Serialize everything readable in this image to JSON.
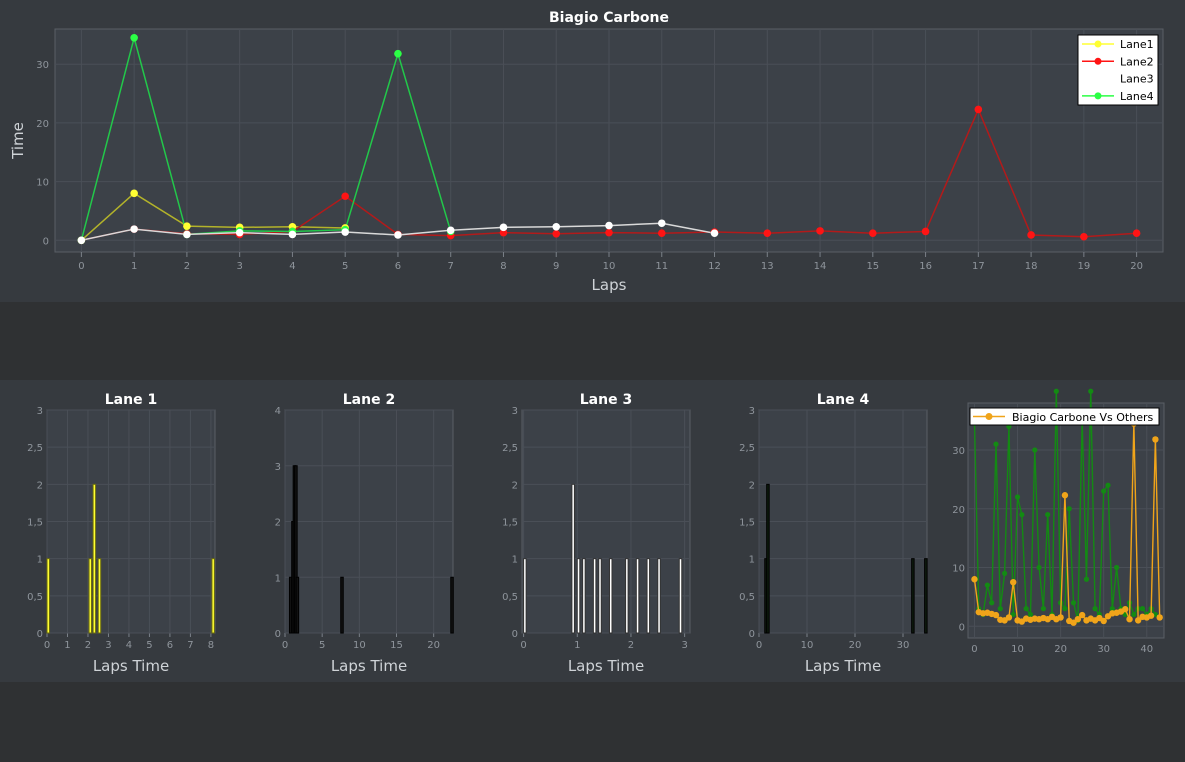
{
  "colors": {
    "background": "#2f3133",
    "panel": "#363a3f",
    "plot": "#3c4148",
    "grid": "#4a4f57",
    "lane1": "#b3b32a",
    "lane1_marker": "#ffff33",
    "lane2": "#b31a1a",
    "lane2_marker": "#ff1414",
    "lane3": "#d9d9d9",
    "lane3_marker": "#ffffff",
    "lane4": "#22c84a",
    "lane4_marker": "#2bff45",
    "histogram_lane2": "#111111",
    "histogram_lane4": "#0d1a0d",
    "others": "#138a13",
    "compare": "#f0a41a"
  },
  "chart_data": [
    {
      "id": "main",
      "type": "line",
      "title": "Biagio Carbone",
      "xlabel": "Laps",
      "ylabel": "Time",
      "xlim": [
        -0.5,
        20.5
      ],
      "ylim": [
        -2,
        36
      ],
      "xticks": [
        0,
        1,
        2,
        3,
        4,
        5,
        6,
        7,
        8,
        9,
        10,
        11,
        12,
        13,
        14,
        15,
        16,
        17,
        18,
        19,
        20
      ],
      "yticks": [
        0,
        10,
        20,
        30
      ],
      "grid": true,
      "legend_position": "top-right",
      "series": [
        {
          "name": "Lane1",
          "x": [
            0,
            1,
            2,
            3,
            4,
            5
          ],
          "y": [
            0,
            8,
            2.4,
            2.2,
            2.3,
            2.1
          ]
        },
        {
          "name": "Lane2",
          "x": [
            0,
            1,
            2,
            3,
            4,
            5,
            6,
            7,
            8,
            9,
            10,
            11,
            12,
            13,
            14,
            15,
            16,
            17,
            18,
            19,
            20
          ],
          "y": [
            0,
            1.9,
            1.1,
            1,
            1.5,
            7.5,
            1,
            0.8,
            1.3,
            1.1,
            1.3,
            1.2,
            1.4,
            1.2,
            1.6,
            1.2,
            1.5,
            22.3,
            0.9,
            0.6,
            1.2
          ]
        },
        {
          "name": "Lane3",
          "x": [
            0,
            1,
            2,
            3,
            4,
            5,
            6,
            7,
            8,
            9,
            10,
            11,
            12
          ],
          "y": [
            0,
            1.9,
            1,
            1.3,
            1,
            1.4,
            0.9,
            1.7,
            2.2,
            2.3,
            2.5,
            2.9,
            1.2
          ]
        },
        {
          "name": "Lane4",
          "x": [
            0,
            1,
            2,
            3,
            4,
            5,
            6,
            7
          ],
          "y": [
            0,
            34.5,
            1,
            1.6,
            1.5,
            1.8,
            31.8,
            1.5
          ]
        }
      ]
    },
    {
      "id": "lane1",
      "type": "bar",
      "title": "Lane 1",
      "xlabel": "Laps Time",
      "ylabel": "",
      "xlim": [
        0,
        8.2
      ],
      "ylim": [
        0,
        3
      ],
      "bin_width": 0.1,
      "xticks": [
        "0",
        "1",
        "2",
        "3",
        "4",
        "5",
        "6",
        "7",
        "8"
      ],
      "xtick_values": [
        0,
        1,
        2,
        3,
        4,
        5,
        6,
        7,
        8
      ],
      "yticks": [
        "0",
        "0,5",
        "1",
        "1,5",
        "2",
        "2,5",
        "3"
      ],
      "ytick_values": [
        0,
        0.5,
        1,
        1.5,
        2,
        2.5,
        3
      ],
      "bins": [
        {
          "x": 0,
          "count": 1
        },
        {
          "x": 2.05,
          "count": 1
        },
        {
          "x": 2.25,
          "count": 2
        },
        {
          "x": 2.5,
          "count": 1
        },
        {
          "x": 8.05,
          "count": 1
        }
      ]
    },
    {
      "id": "lane2",
      "type": "bar",
      "title": "Lane 2",
      "xlabel": "Laps Time",
      "ylabel": "",
      "xlim": [
        0,
        22.6
      ],
      "ylim": [
        0,
        4
      ],
      "bin_width": 0.22,
      "xticks": [
        "0",
        "5",
        "10",
        "15",
        "20"
      ],
      "xtick_values": [
        0,
        5,
        10,
        15,
        20
      ],
      "yticks": [
        "0",
        "1",
        "2",
        "3",
        "4"
      ],
      "ytick_values": [
        0,
        1,
        2,
        3,
        4
      ],
      "bins": [
        {
          "x": 0.6,
          "count": 1
        },
        {
          "x": 0.9,
          "count": 2
        },
        {
          "x": 1.1,
          "count": 3
        },
        {
          "x": 1.3,
          "count": 3
        },
        {
          "x": 1.5,
          "count": 1
        },
        {
          "x": 7.5,
          "count": 1
        },
        {
          "x": 22.3,
          "count": 1
        }
      ]
    },
    {
      "id": "lane3",
      "type": "bar",
      "title": "Lane 3",
      "xlabel": "Laps Time",
      "ylabel": "",
      "xlim": [
        -0.03,
        3.1
      ],
      "ylim": [
        0,
        3
      ],
      "bin_width": 0.04,
      "xticks": [
        "0",
        "1",
        "2",
        "3"
      ],
      "xtick_values": [
        0,
        1,
        2,
        3
      ],
      "yticks": [
        "0",
        "0,5",
        "1",
        "1,5",
        "2",
        "2,5",
        "3"
      ],
      "ytick_values": [
        0,
        0.5,
        1,
        1.5,
        2,
        2.5,
        3
      ],
      "bins": [
        {
          "x": 0,
          "count": 1
        },
        {
          "x": 0.9,
          "count": 2
        },
        {
          "x": 1,
          "count": 1
        },
        {
          "x": 1.1,
          "count": 1
        },
        {
          "x": 1.3,
          "count": 1
        },
        {
          "x": 1.4,
          "count": 1
        },
        {
          "x": 1.6,
          "count": 1
        },
        {
          "x": 1.9,
          "count": 1
        },
        {
          "x": 2.1,
          "count": 1
        },
        {
          "x": 2.3,
          "count": 1
        },
        {
          "x": 2.5,
          "count": 1
        },
        {
          "x": 2.9,
          "count": 1
        }
      ]
    },
    {
      "id": "lane4",
      "type": "bar",
      "title": "Lane 4",
      "xlabel": "Laps Time",
      "ylabel": "",
      "xlim": [
        0,
        35
      ],
      "ylim": [
        0,
        3
      ],
      "bin_width": 0.3,
      "xticks": [
        "0",
        "10",
        "20",
        "30"
      ],
      "xtick_values": [
        0,
        10,
        20,
        30
      ],
      "yticks": [
        "0",
        "0,5",
        "1",
        "1,5",
        "2",
        "2,5",
        "3"
      ],
      "ytick_values": [
        0,
        0.5,
        1,
        1.5,
        2,
        2.5,
        3
      ],
      "bins": [
        {
          "x": 1.2,
          "count": 1
        },
        {
          "x": 1.6,
          "count": 2
        },
        {
          "x": 31.8,
          "count": 1
        },
        {
          "x": 34.5,
          "count": 1
        }
      ]
    },
    {
      "id": "compare",
      "type": "line",
      "title": "",
      "xlabel": "",
      "ylabel": "",
      "xlim": [
        -1.5,
        44
      ],
      "ylim": [
        -2,
        38
      ],
      "xticks": [
        0,
        10,
        20,
        30,
        40
      ],
      "yticks": [
        0,
        10,
        20,
        30
      ],
      "legend_position": "top",
      "series": [
        {
          "name": "Others",
          "values": [
            35,
            3,
            2,
            7,
            4,
            31,
            3,
            9,
            34,
            2,
            22,
            19,
            3,
            2,
            30,
            10,
            3,
            19,
            2,
            40,
            4,
            3,
            20,
            4,
            1,
            35,
            8,
            40,
            3,
            2,
            23,
            24,
            3,
            10,
            3,
            2,
            4,
            2,
            3,
            3,
            2,
            3,
            2
          ]
        },
        {
          "name": "Biagio Carbone Vs Others",
          "values": [
            8,
            2.4,
            2.2,
            2.3,
            2.1,
            1.9,
            1.1,
            1,
            1.5,
            7.5,
            1,
            0.8,
            1.3,
            1.1,
            1.3,
            1.2,
            1.4,
            1.2,
            1.6,
            1.2,
            1.5,
            22.3,
            0.9,
            0.6,
            1.2,
            1.9,
            1,
            1.3,
            1,
            1.4,
            0.9,
            1.7,
            2.2,
            2.3,
            2.5,
            2.9,
            1.2,
            34.5,
            1,
            1.6,
            1.5,
            1.8,
            31.8,
            1.5
          ]
        }
      ]
    }
  ]
}
